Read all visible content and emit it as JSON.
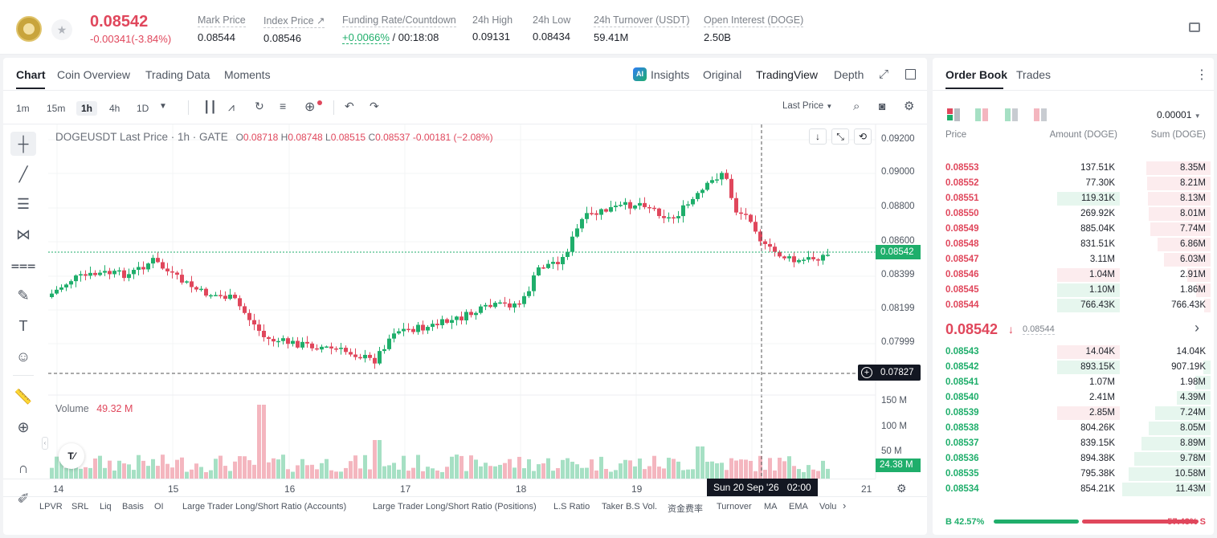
{
  "header": {
    "price": "0.08542",
    "change": "-0.00341(-3.84%)",
    "stats": [
      {
        "label": "Mark Price",
        "value": "0.08544"
      },
      {
        "label": "Index Price ↗",
        "value": "0.08546"
      },
      {
        "label": "Funding Rate/Countdown",
        "value_green": "+0.0066%",
        "value_rest": " / 00:18:08"
      },
      {
        "label": "24h High",
        "value": "0.09131"
      },
      {
        "label": "24h Low",
        "value": "0.08434"
      },
      {
        "label": "24h Turnover (USDT)",
        "value": "59.41M"
      },
      {
        "label": "Open Interest (DOGE)",
        "value": "2.50B"
      }
    ]
  },
  "chart_tabs": {
    "chart": "Chart",
    "overview": "Coin Overview",
    "trading": "Trading Data",
    "moments": "Moments"
  },
  "view_tabs": {
    "insights": "Insights",
    "original": "Original",
    "tradingview": "TradingView",
    "depth": "Depth"
  },
  "timeframes": [
    "1m",
    "15m",
    "1h",
    "4h",
    "1D"
  ],
  "last_price_select": "Last Price",
  "legend": {
    "symbol": "DOGEUSDT Last Price · 1h · GATE",
    "o": "0.08718",
    "h": "0.08748",
    "l": "0.08515",
    "c": "0.08537",
    "chg": "-0.00181 (−2.08%)"
  },
  "volume_legend": {
    "label": "Volume",
    "value": "49.32 M"
  },
  "price_axis": [
    "0.09200",
    "0.09000",
    "0.08800",
    "0.08600",
    "0.08399",
    "0.08199",
    "0.07999"
  ],
  "last_price_tag": "0.08542",
  "cross_price_tag": "0.07827",
  "vol_axis": [
    "150 M",
    "100 M",
    "50 M"
  ],
  "vol_tag": "24.38 M",
  "time_axis": [
    "14",
    "15",
    "16",
    "17",
    "18",
    "19",
    "21"
  ],
  "crosshair_time": "Sun 20 Sep '26   02:00",
  "bottom_bar": [
    "LPVR",
    "SRL",
    "Liq",
    "Basis",
    "OI",
    "Large Trader Long/Short Ratio (Accounts)",
    "Large Trader Long/Short Ratio (Positions)",
    "L.S Ratio",
    "Taker B.S Vol.",
    "资金费率",
    "Turnover",
    "MA",
    "EMA",
    "Volu"
  ],
  "orderbook": {
    "tabs": {
      "book": "Order Book",
      "trades": "Trades"
    },
    "precision": "0.00001",
    "headers": {
      "price": "Price",
      "amount": "Amount (DOGE)",
      "sum": "Sum (DOGE)"
    },
    "asks": [
      {
        "p": "0.08553",
        "a": "137.51K",
        "s": "8.35M",
        "af": 0,
        "sf": 0.73
      },
      {
        "p": "0.08552",
        "a": "77.30K",
        "s": "8.21M",
        "af": 0,
        "sf": 0.72
      },
      {
        "p": "0.08551",
        "a": "119.31K",
        "s": "8.13M",
        "af": 0.71,
        "sf": 0.71,
        "ag": true
      },
      {
        "p": "0.08550",
        "a": "269.92K",
        "s": "8.01M",
        "af": 0,
        "sf": 0.7
      },
      {
        "p": "0.08549",
        "a": "885.04K",
        "s": "7.74M",
        "af": 0,
        "sf": 0.68
      },
      {
        "p": "0.08548",
        "a": "831.51K",
        "s": "6.86M",
        "af": 0,
        "sf": 0.6
      },
      {
        "p": "0.08547",
        "a": "3.11M",
        "s": "6.03M",
        "af": 0,
        "sf": 0.53
      },
      {
        "p": "0.08546",
        "a": "1.04M",
        "s": "2.91M",
        "af": 0.71,
        "sf": 0.26
      },
      {
        "p": "0.08545",
        "a": "1.10M",
        "s": "1.86M",
        "af": 0.71,
        "sf": 0.16,
        "ag": true
      },
      {
        "p": "0.08544",
        "a": "766.43K",
        "s": "766.43K",
        "af": 0.71,
        "sf": 0.07,
        "ag": true
      }
    ],
    "mid": {
      "price": "0.08542",
      "mark": "0.08544"
    },
    "bids": [
      {
        "p": "0.08543",
        "a": "14.04K",
        "s": "14.04K",
        "af": 0.71,
        "sf": 0,
        "ar": true
      },
      {
        "p": "0.08542",
        "a": "893.15K",
        "s": "907.19K",
        "af": 0.71,
        "sf": 0.08
      },
      {
        "p": "0.08541",
        "a": "1.07M",
        "s": "1.98M",
        "af": 0,
        "sf": 0.17
      },
      {
        "p": "0.08540",
        "a": "2.41M",
        "s": "4.39M",
        "af": 0,
        "sf": 0.38
      },
      {
        "p": "0.08539",
        "a": "2.85M",
        "s": "7.24M",
        "af": 0.71,
        "sf": 0.63,
        "ar": true
      },
      {
        "p": "0.08538",
        "a": "804.26K",
        "s": "8.05M",
        "af": 0,
        "sf": 0.7
      },
      {
        "p": "0.08537",
        "a": "839.15K",
        "s": "8.89M",
        "af": 0,
        "sf": 0.78
      },
      {
        "p": "0.08536",
        "a": "894.38K",
        "s": "9.78M",
        "af": 0,
        "sf": 0.86
      },
      {
        "p": "0.08535",
        "a": "795.38K",
        "s": "10.58M",
        "af": 0,
        "sf": 0.93
      },
      {
        "p": "0.08534",
        "a": "854.21K",
        "s": "11.43M",
        "af": 0,
        "sf": 1.0
      }
    ],
    "ratio": {
      "b_label": "B 42.57%",
      "s_label": "57.43% S",
      "b": 0.4257
    }
  },
  "colors": {
    "up": "#1fae6b",
    "down": "#e0475c"
  }
}
